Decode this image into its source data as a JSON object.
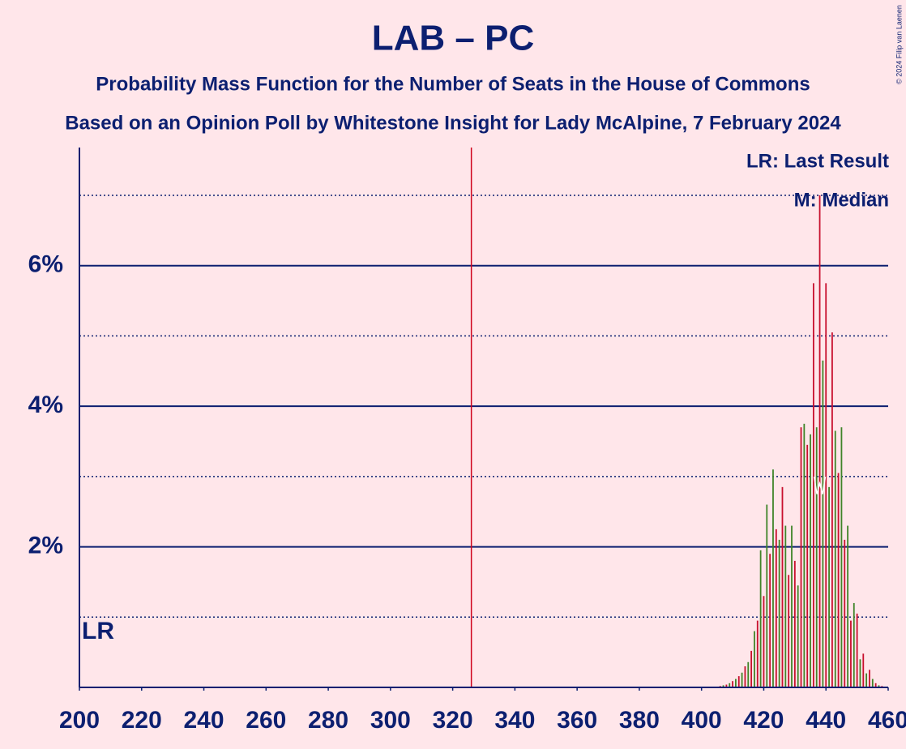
{
  "chart_data": {
    "type": "bar",
    "title": "LAB – PC",
    "subtitle": "Probability Mass Function for the Number of Seats in the House of Commons",
    "subtitle2": "Based on an Opinion Poll by Whitestone Insight for Lady McAlpine, 7 February 2024",
    "copyright": "© 2024 Filip van Laenen",
    "legend": [
      "LR: Last Result",
      "M: Median"
    ],
    "last_result_label": "LR",
    "last_result": 206,
    "majority": 326,
    "median": 438,
    "colors": [
      "#c8102e",
      "#3f8428"
    ],
    "x": [
      404,
      405,
      406,
      407,
      408,
      409,
      410,
      411,
      412,
      413,
      414,
      415,
      416,
      417,
      418,
      419,
      420,
      421,
      422,
      423,
      424,
      425,
      426,
      427,
      428,
      429,
      430,
      431,
      432,
      433,
      434,
      435,
      436,
      437,
      438,
      439,
      440,
      441,
      442,
      443,
      444,
      445,
      446,
      447,
      448,
      449,
      450,
      451,
      452,
      453,
      454,
      455,
      456,
      457,
      458
    ],
    "values": [
      0.01,
      0.01,
      0.02,
      0.03,
      0.04,
      0.06,
      0.09,
      0.12,
      0.16,
      0.21,
      0.3,
      0.36,
      0.52,
      0.8,
      0.95,
      1.95,
      1.3,
      2.6,
      1.9,
      3.1,
      2.25,
      2.1,
      2.85,
      2.3,
      1.6,
      2.3,
      1.8,
      1.45,
      3.7,
      3.75,
      3.45,
      3.6,
      5.75,
      3.7,
      7.0,
      4.65,
      5.75,
      2.85,
      5.05,
      3.65,
      3.05,
      3.7,
      2.1,
      2.3,
      0.95,
      1.2,
      1.05,
      0.4,
      0.48,
      0.2,
      0.25,
      0.12,
      0.06,
      0.03,
      0.02
    ],
    "xlim": [
      200,
      460
    ],
    "xticks": [
      200,
      220,
      240,
      260,
      280,
      300,
      320,
      340,
      360,
      380,
      400,
      420,
      440,
      460
    ],
    "ylim": [
      0,
      7.68
    ],
    "yticks": [
      {
        "value": 2,
        "label": "2%"
      },
      {
        "value": 4,
        "label": "4%"
      },
      {
        "value": 6,
        "label": "6%"
      }
    ],
    "minor_yticks": [
      1,
      3,
      5,
      7
    ]
  }
}
